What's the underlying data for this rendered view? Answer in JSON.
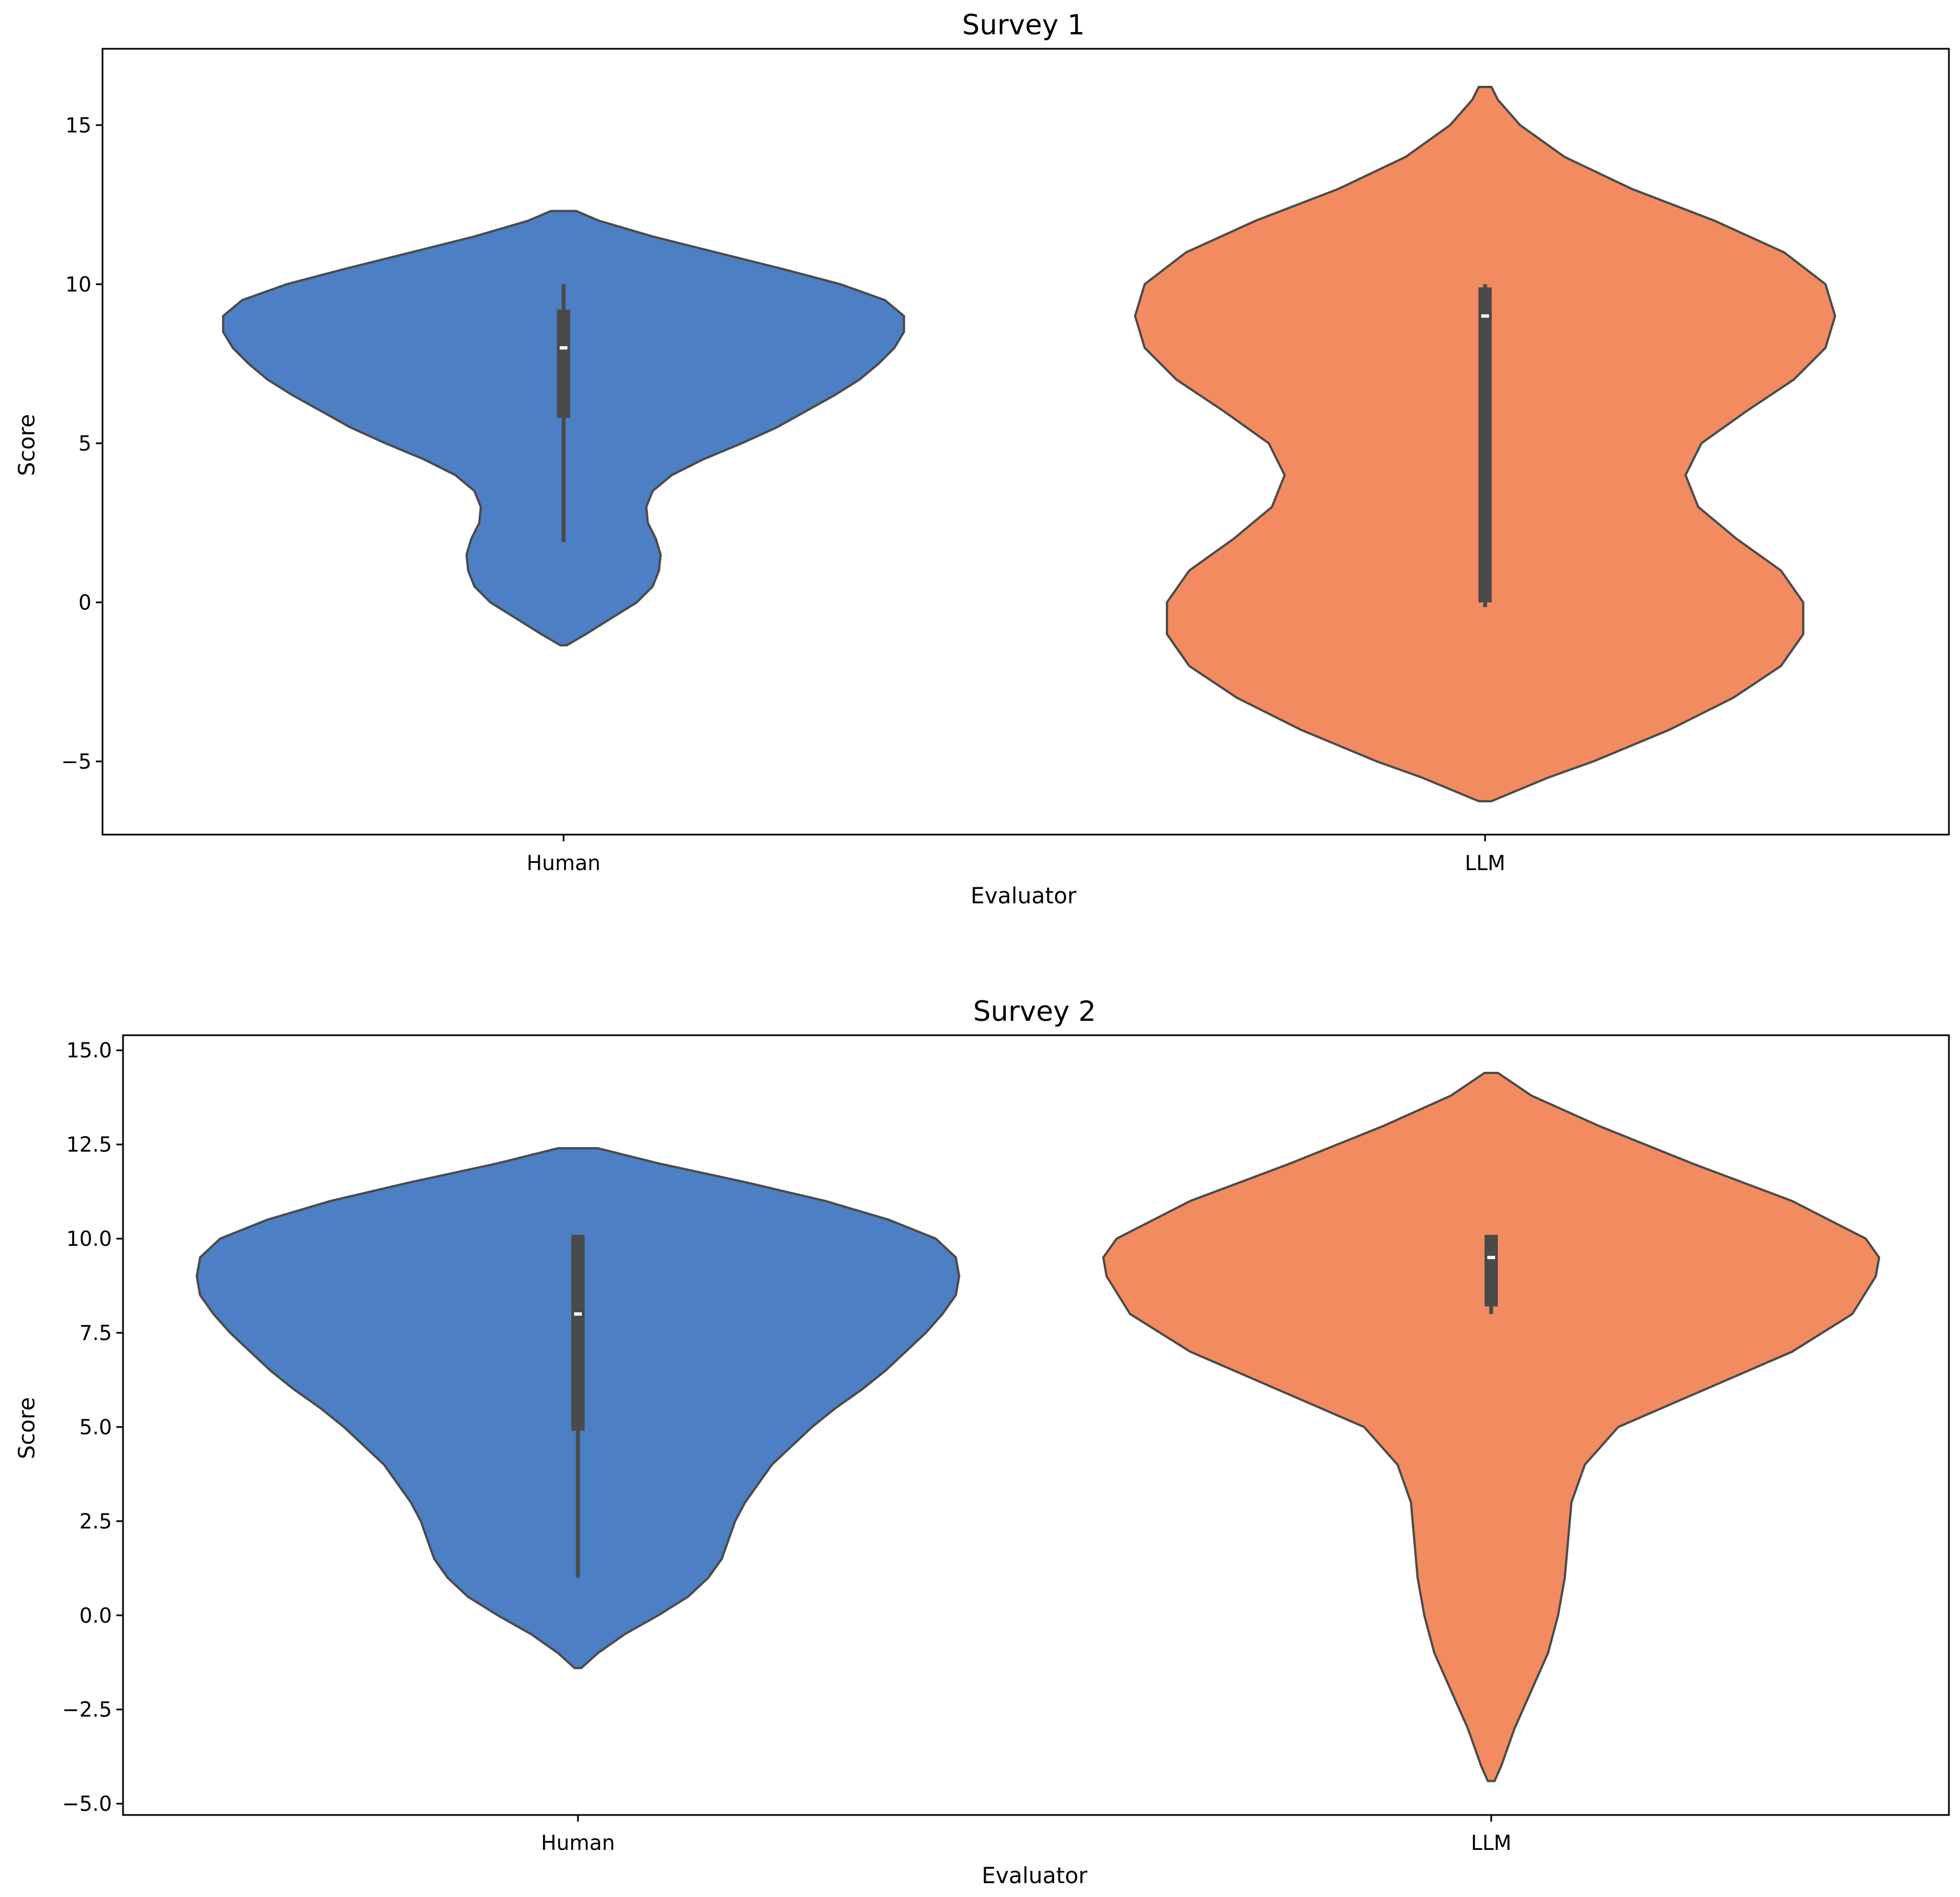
{
  "chart_data": [
    {
      "type": "violin",
      "title": "Survey 1",
      "xlabel": "Evaluator",
      "ylabel": "Score",
      "ylim": [
        -7.3,
        17.4
      ],
      "yticks": [
        -5,
        0,
        5,
        10,
        15
      ],
      "ytick_labels": [
        "−5",
        "0",
        "5",
        "10",
        "15"
      ],
      "categories": [
        "Human",
        "LLM"
      ],
      "colors": [
        "#4C7FC3",
        "#F28B5F"
      ],
      "violins": [
        {
          "category": "Human",
          "min": -1.35,
          "max": 12.3,
          "profile": [
            [
              -1.35,
              0.01
            ],
            [
              -1.0,
              0.07
            ],
            [
              -0.5,
              0.15
            ],
            [
              0,
              0.23
            ],
            [
              0.5,
              0.28
            ],
            [
              1.0,
              0.3
            ],
            [
              1.5,
              0.305
            ],
            [
              2.0,
              0.29
            ],
            [
              2.5,
              0.265
            ],
            [
              3.0,
              0.26
            ],
            [
              3.5,
              0.28
            ],
            [
              4.0,
              0.34
            ],
            [
              4.5,
              0.44
            ],
            [
              5.0,
              0.56
            ],
            [
              5.5,
              0.67
            ],
            [
              6.0,
              0.76
            ],
            [
              6.5,
              0.85
            ],
            [
              7.0,
              0.93
            ],
            [
              7.5,
              0.99
            ],
            [
              8.0,
              1.04
            ],
            [
              8.5,
              1.07
            ],
            [
              9.0,
              1.07
            ],
            [
              9.5,
              1.01
            ],
            [
              10.0,
              0.87
            ],
            [
              10.5,
              0.68
            ],
            [
              11.0,
              0.48
            ],
            [
              11.5,
              0.28
            ],
            [
              12.0,
              0.11
            ],
            [
              12.3,
              0.04
            ]
          ],
          "whisker_low": 1.9,
          "q1": 5.8,
          "median": 8.0,
          "q3": 9.2,
          "whisker_high": 10.0
        },
        {
          "category": "LLM",
          "min": -6.25,
          "max": 16.2,
          "profile": [
            [
              -6.25,
              0.02
            ],
            [
              -5.5,
              0.2
            ],
            [
              -5.0,
              0.34
            ],
            [
              -4.0,
              0.58
            ],
            [
              -3.0,
              0.78
            ],
            [
              -2.0,
              0.93
            ],
            [
              -1.0,
              1.0
            ],
            [
              0,
              1.0
            ],
            [
              1.0,
              0.93
            ],
            [
              2.0,
              0.79
            ],
            [
              3.0,
              0.67
            ],
            [
              4.0,
              0.63
            ],
            [
              5.0,
              0.68
            ],
            [
              6.0,
              0.82
            ],
            [
              7.0,
              0.97
            ],
            [
              8.0,
              1.07
            ],
            [
              9.0,
              1.1
            ],
            [
              10.0,
              1.07
            ],
            [
              11.0,
              0.94
            ],
            [
              12.0,
              0.72
            ],
            [
              13.0,
              0.46
            ],
            [
              14.0,
              0.25
            ],
            [
              15.0,
              0.11
            ],
            [
              15.8,
              0.04
            ],
            [
              16.2,
              0.02
            ]
          ],
          "whisker_low": -0.15,
          "q1": 0.0,
          "median": 9.0,
          "q3": 9.9,
          "whisker_high": 10.0
        }
      ]
    },
    {
      "type": "violin",
      "title": "Survey 2",
      "xlabel": "Evaluator",
      "ylabel": "Score",
      "ylim": [
        -5.3,
        15.4
      ],
      "yticks": [
        -5.0,
        -2.5,
        0.0,
        2.5,
        5.0,
        7.5,
        10.0,
        12.5,
        15.0
      ],
      "ytick_labels": [
        "−5.0",
        "−2.5",
        "0.0",
        "2.5",
        "5.0",
        "7.5",
        "10.0",
        "12.5",
        "15.0"
      ],
      "categories": [
        "Human",
        "LLM"
      ],
      "colors": [
        "#4C7FC3",
        "#F28B5F"
      ],
      "violins": [
        {
          "category": "Human",
          "min": -1.4,
          "max": 12.4,
          "profile": [
            [
              -1.4,
              0.01
            ],
            [
              -1.0,
              0.06
            ],
            [
              -0.5,
              0.14
            ],
            [
              0,
              0.24
            ],
            [
              0.5,
              0.33
            ],
            [
              1.0,
              0.39
            ],
            [
              1.5,
              0.43
            ],
            [
              2.0,
              0.45
            ],
            [
              2.5,
              0.47
            ],
            [
              3.0,
              0.5
            ],
            [
              3.5,
              0.54
            ],
            [
              4.0,
              0.58
            ],
            [
              4.5,
              0.64
            ],
            [
              5.0,
              0.7
            ],
            [
              5.5,
              0.77
            ],
            [
              6.0,
              0.85
            ],
            [
              6.5,
              0.92
            ],
            [
              7.0,
              0.98
            ],
            [
              7.5,
              1.04
            ],
            [
              8.0,
              1.09
            ],
            [
              8.5,
              1.13
            ],
            [
              9.0,
              1.14
            ],
            [
              9.5,
              1.13
            ],
            [
              10.0,
              1.07
            ],
            [
              10.5,
              0.93
            ],
            [
              11.0,
              0.74
            ],
            [
              11.5,
              0.5
            ],
            [
              12.0,
              0.24
            ],
            [
              12.4,
              0.06
            ]
          ],
          "whisker_low": 1.0,
          "q1": 4.9,
          "median": 8.0,
          "q3": 10.1,
          "whisker_high": 10.1
        },
        {
          "category": "LLM",
          "min": -4.4,
          "max": 14.4,
          "profile": [
            [
              -4.4,
              0.01
            ],
            [
              -4.0,
              0.03
            ],
            [
              -3.0,
              0.07
            ],
            [
              -2.0,
              0.12
            ],
            [
              -1.0,
              0.17
            ],
            [
              0,
              0.2
            ],
            [
              1.0,
              0.22
            ],
            [
              2.0,
              0.23
            ],
            [
              3.0,
              0.24
            ],
            [
              4.0,
              0.28
            ],
            [
              5.0,
              0.38
            ],
            [
              6.0,
              0.64
            ],
            [
              7.0,
              0.9
            ],
            [
              8.0,
              1.08
            ],
            [
              9.0,
              1.15
            ],
            [
              9.5,
              1.16
            ],
            [
              10.0,
              1.12
            ],
            [
              11.0,
              0.9
            ],
            [
              12.0,
              0.6
            ],
            [
              13.0,
              0.32
            ],
            [
              13.8,
              0.12
            ],
            [
              14.4,
              0.02
            ]
          ],
          "whisker_low": 8.0,
          "q1": 8.2,
          "median": 9.5,
          "q3": 10.1,
          "whisker_high": 10.1
        }
      ]
    }
  ]
}
